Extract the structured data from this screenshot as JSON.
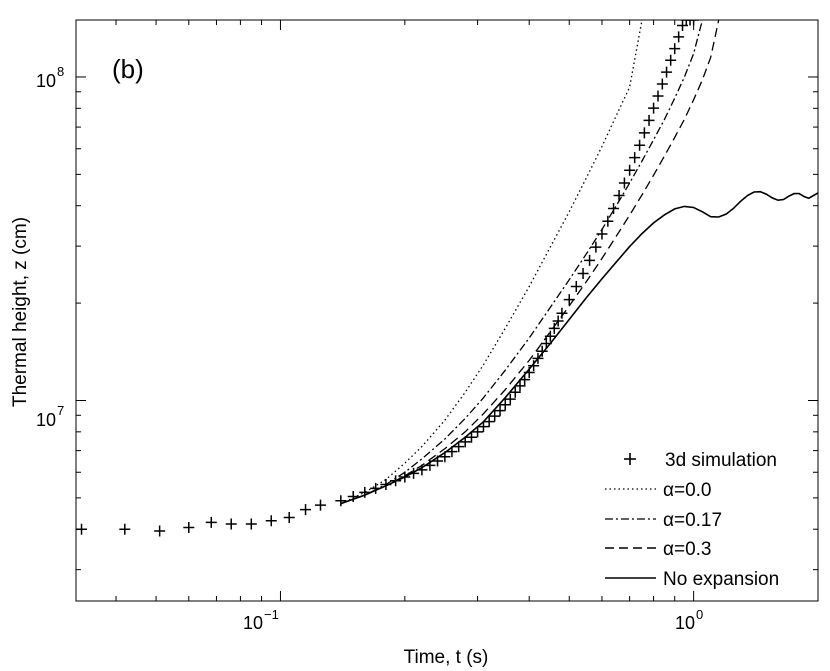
{
  "chart_data": {
    "type": "line",
    "panel_label": "(b)",
    "xlabel": "Time, t (s)",
    "ylabel": "Thermal height, z (cm)",
    "xscale": "log",
    "yscale": "log",
    "xlim": [
      0.032,
      2.0
    ],
    "ylim": [
      2400000,
      150000000
    ],
    "x_ticks": [
      {
        "value": 0.1,
        "base": "10",
        "exp": "−1"
      },
      {
        "value": 1.0,
        "label": "10"
      }
    ],
    "y_ticks": [
      {
        "value": 10000000,
        "base": "10",
        "exp": "7"
      },
      {
        "value": 100000000,
        "base": "10",
        "exp": "8"
      }
    ],
    "legend_position": "bottom-right",
    "series": [
      {
        "name": "3d simulation",
        "style": "markers",
        "x": [
          0.033,
          0.042,
          0.051,
          0.06,
          0.068,
          0.076,
          0.085,
          0.095,
          0.105,
          0.115,
          0.125,
          0.14,
          0.15,
          0.16,
          0.17,
          0.18,
          0.19,
          0.2,
          0.21,
          0.22,
          0.23,
          0.24,
          0.25,
          0.26,
          0.27,
          0.28,
          0.29,
          0.3,
          0.31,
          0.32,
          0.33,
          0.34,
          0.35,
          0.36,
          0.37,
          0.38,
          0.39,
          0.4,
          0.41,
          0.42,
          0.43,
          0.44,
          0.45,
          0.46,
          0.47,
          0.48,
          0.5,
          0.52,
          0.54,
          0.56,
          0.58,
          0.6,
          0.62,
          0.64,
          0.66,
          0.68,
          0.7,
          0.72,
          0.74,
          0.76,
          0.78,
          0.8,
          0.82,
          0.84,
          0.86,
          0.88,
          0.9,
          0.92,
          0.94,
          0.96,
          0.98,
          1.0
        ],
        "y": [
          4000000,
          4000000,
          3950000,
          4050000,
          4200000,
          4150000,
          4150000,
          4250000,
          4350000,
          4600000,
          4750000,
          4900000,
          5050000,
          5200000,
          5350000,
          5500000,
          5650000,
          5800000,
          5950000,
          6100000,
          6300000,
          6500000,
          6700000,
          6950000,
          7200000,
          7450000,
          7700000,
          8000000,
          8300000,
          8600000,
          8950000,
          9300000,
          9700000,
          10100000,
          10600000,
          11100000,
          11600000,
          12200000,
          12800000,
          13500000,
          14200000,
          15000000,
          15800000,
          16700000,
          17600000,
          18600000,
          20500000,
          22500000,
          24700000,
          27100000,
          29800000,
          32700000,
          35800000,
          39200000,
          43000000,
          47000000,
          51500000,
          56300000,
          61500000,
          67200000,
          73400000,
          80100000,
          87300000,
          95100000,
          103500000,
          112600000,
          122400000,
          133000000,
          144300000,
          150000000,
          150000000,
          150000000
        ]
      },
      {
        "name": "α=0.0",
        "style": "dotted",
        "x": [
          0.14,
          0.16,
          0.18,
          0.2,
          0.22,
          0.25,
          0.28,
          0.31,
          0.35,
          0.4,
          0.45,
          0.5,
          0.55,
          0.6,
          0.65,
          0.7,
          0.75
        ],
        "y": [
          4800000,
          5200000,
          5700000,
          6400000,
          7200000,
          8700000,
          10600000,
          12900000,
          16700000,
          22500000,
          29800000,
          38300000,
          48800000,
          61000000,
          76000000,
          93000000,
          150000000
        ]
      },
      {
        "name": "α=0.17",
        "style": "dashdot",
        "x": [
          0.14,
          0.16,
          0.18,
          0.2,
          0.22,
          0.25,
          0.28,
          0.31,
          0.35,
          0.4,
          0.45,
          0.5,
          0.55,
          0.6,
          0.65,
          0.7,
          0.75,
          0.8,
          0.85,
          0.9,
          0.95,
          1.0,
          1.05
        ],
        "y": [
          4800000,
          5100000,
          5500000,
          6000000,
          6600000,
          7600000,
          8800000,
          10200000,
          12400000,
          15600000,
          19400000,
          23600000,
          28400000,
          33800000,
          40000000,
          47000000,
          55000000,
          64000000,
          74000000,
          86000000,
          100000000,
          118000000,
          150000000
        ]
      },
      {
        "name": "α=0.3",
        "style": "dashed",
        "x": [
          0.14,
          0.16,
          0.18,
          0.2,
          0.22,
          0.25,
          0.28,
          0.31,
          0.35,
          0.4,
          0.45,
          0.5,
          0.55,
          0.6,
          0.65,
          0.7,
          0.75,
          0.8,
          0.85,
          0.9,
          0.95,
          1.0,
          1.05,
          1.1,
          1.15
        ],
        "y": [
          4800000,
          5100000,
          5450000,
          5850000,
          6300000,
          7100000,
          8000000,
          9100000,
          10800000,
          13300000,
          16300000,
          19600000,
          23300000,
          27500000,
          32200000,
          37400000,
          43200000,
          49700000,
          57000000,
          65000000,
          74000000,
          85000000,
          98000000,
          115000000,
          150000000
        ]
      },
      {
        "name": "No expansion",
        "style": "solid",
        "x": [
          0.14,
          0.16,
          0.18,
          0.2,
          0.22,
          0.25,
          0.28,
          0.31,
          0.35,
          0.4,
          0.45,
          0.5,
          0.55,
          0.6,
          0.65,
          0.7,
          0.75,
          0.8,
          0.85,
          0.9,
          0.95,
          1.0,
          1.05,
          1.1,
          1.15,
          1.2,
          1.25,
          1.3,
          1.35,
          1.4,
          1.45,
          1.5,
          1.55,
          1.6,
          1.65,
          1.7,
          1.75,
          1.8,
          1.85,
          1.9,
          1.95,
          2.0
        ],
        "y": [
          4800000,
          5100000,
          5450000,
          5800000,
          6200000,
          6900000,
          7700000,
          8600000,
          10200000,
          12500000,
          15000000,
          17800000,
          20800000,
          23800000,
          26800000,
          29900000,
          32800000,
          35400000,
          37500000,
          39100000,
          39800000,
          39500000,
          38300000,
          37000000,
          36900000,
          37700000,
          39300000,
          41300000,
          43000000,
          44100000,
          44200000,
          43400000,
          42300000,
          41600000,
          41800000,
          42800000,
          43600000,
          43600000,
          42700000,
          42200000,
          43000000,
          43800000
        ]
      }
    ]
  }
}
